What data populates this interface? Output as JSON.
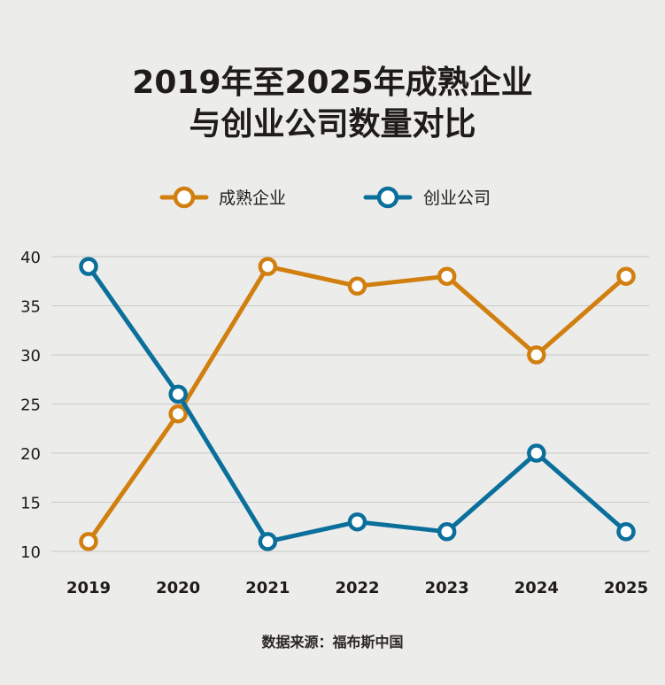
{
  "title_lines": [
    "2019年至2025年成熟企业",
    "与创业公司数量对比"
  ],
  "source": "数据来源：福布斯中国",
  "colors": {
    "background": "#ececeb",
    "mature": "#d17f0f",
    "startup": "#0b6f9c",
    "grid": "#c9c9c7",
    "text": "#1e1b1a"
  },
  "chart_data": {
    "type": "line",
    "title": "2019年至2025年成熟企业与创业公司数量对比",
    "xlabel": "",
    "ylabel": "",
    "x": [
      "2019",
      "2020",
      "2021",
      "2022",
      "2023",
      "2024",
      "2025"
    ],
    "ylim": [
      10,
      40
    ],
    "yticks": [
      10,
      15,
      20,
      25,
      30,
      35,
      40
    ],
    "grid": true,
    "legend_position": "top-center",
    "series": [
      {
        "name": "成熟企业",
        "color": "#d17f0f",
        "values": [
          11,
          24,
          39,
          37,
          38,
          30,
          38
        ]
      },
      {
        "name": "创业公司",
        "color": "#0b6f9c",
        "values": [
          39,
          26,
          11,
          13,
          12,
          20,
          12
        ]
      }
    ]
  }
}
